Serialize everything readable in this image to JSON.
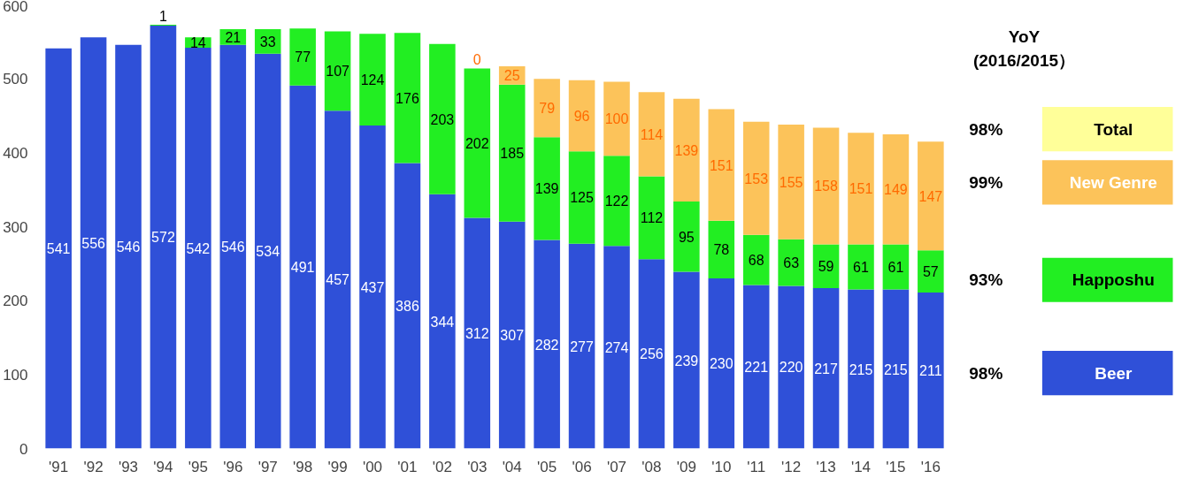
{
  "chart_data": {
    "type": "bar",
    "stacked": true,
    "data_labels": true,
    "grid": false,
    "legend": "right",
    "legend_title": "YoY\n(2016/2015）",
    "categories": [
      "'91",
      "'92",
      "'93",
      "'94",
      "'95",
      "'96",
      "'97",
      "'98",
      "'99",
      "'00",
      "'01",
      "'02",
      "'03",
      "'04",
      "'05",
      "'06",
      "'07",
      "'08",
      "'09",
      "'10",
      "'11",
      "'12",
      "'13",
      "'14",
      "'15",
      "'16"
    ],
    "series": [
      {
        "name": "Beer",
        "color": "#2f50d8",
        "values": [
          541,
          556,
          546,
          572,
          542,
          546,
          534,
          491,
          457,
          437,
          386,
          344,
          312,
          307,
          282,
          277,
          274,
          256,
          239,
          230,
          221,
          220,
          217,
          215,
          215,
          211
        ]
      },
      {
        "name": "Happoshu",
        "color": "#22ee22",
        "values": [
          null,
          null,
          null,
          1,
          14,
          21,
          33,
          77,
          107,
          124,
          176,
          203,
          202,
          185,
          139,
          125,
          122,
          112,
          95,
          78,
          68,
          63,
          59,
          61,
          61,
          57
        ]
      },
      {
        "name": "New Genre",
        "color": "#fcc35a",
        "values": [
          null,
          null,
          null,
          null,
          null,
          null,
          null,
          null,
          null,
          null,
          null,
          null,
          0,
          25,
          79,
          96,
          100,
          114,
          139,
          151,
          153,
          155,
          158,
          151,
          149,
          147
        ]
      }
    ],
    "ylim": [
      0,
      600
    ],
    "yticks": [
      0,
      100,
      200,
      300,
      400,
      500,
      600
    ],
    "annotations": [
      "Total",
      "98%",
      "99%",
      "93%",
      "98%"
    ]
  }
}
